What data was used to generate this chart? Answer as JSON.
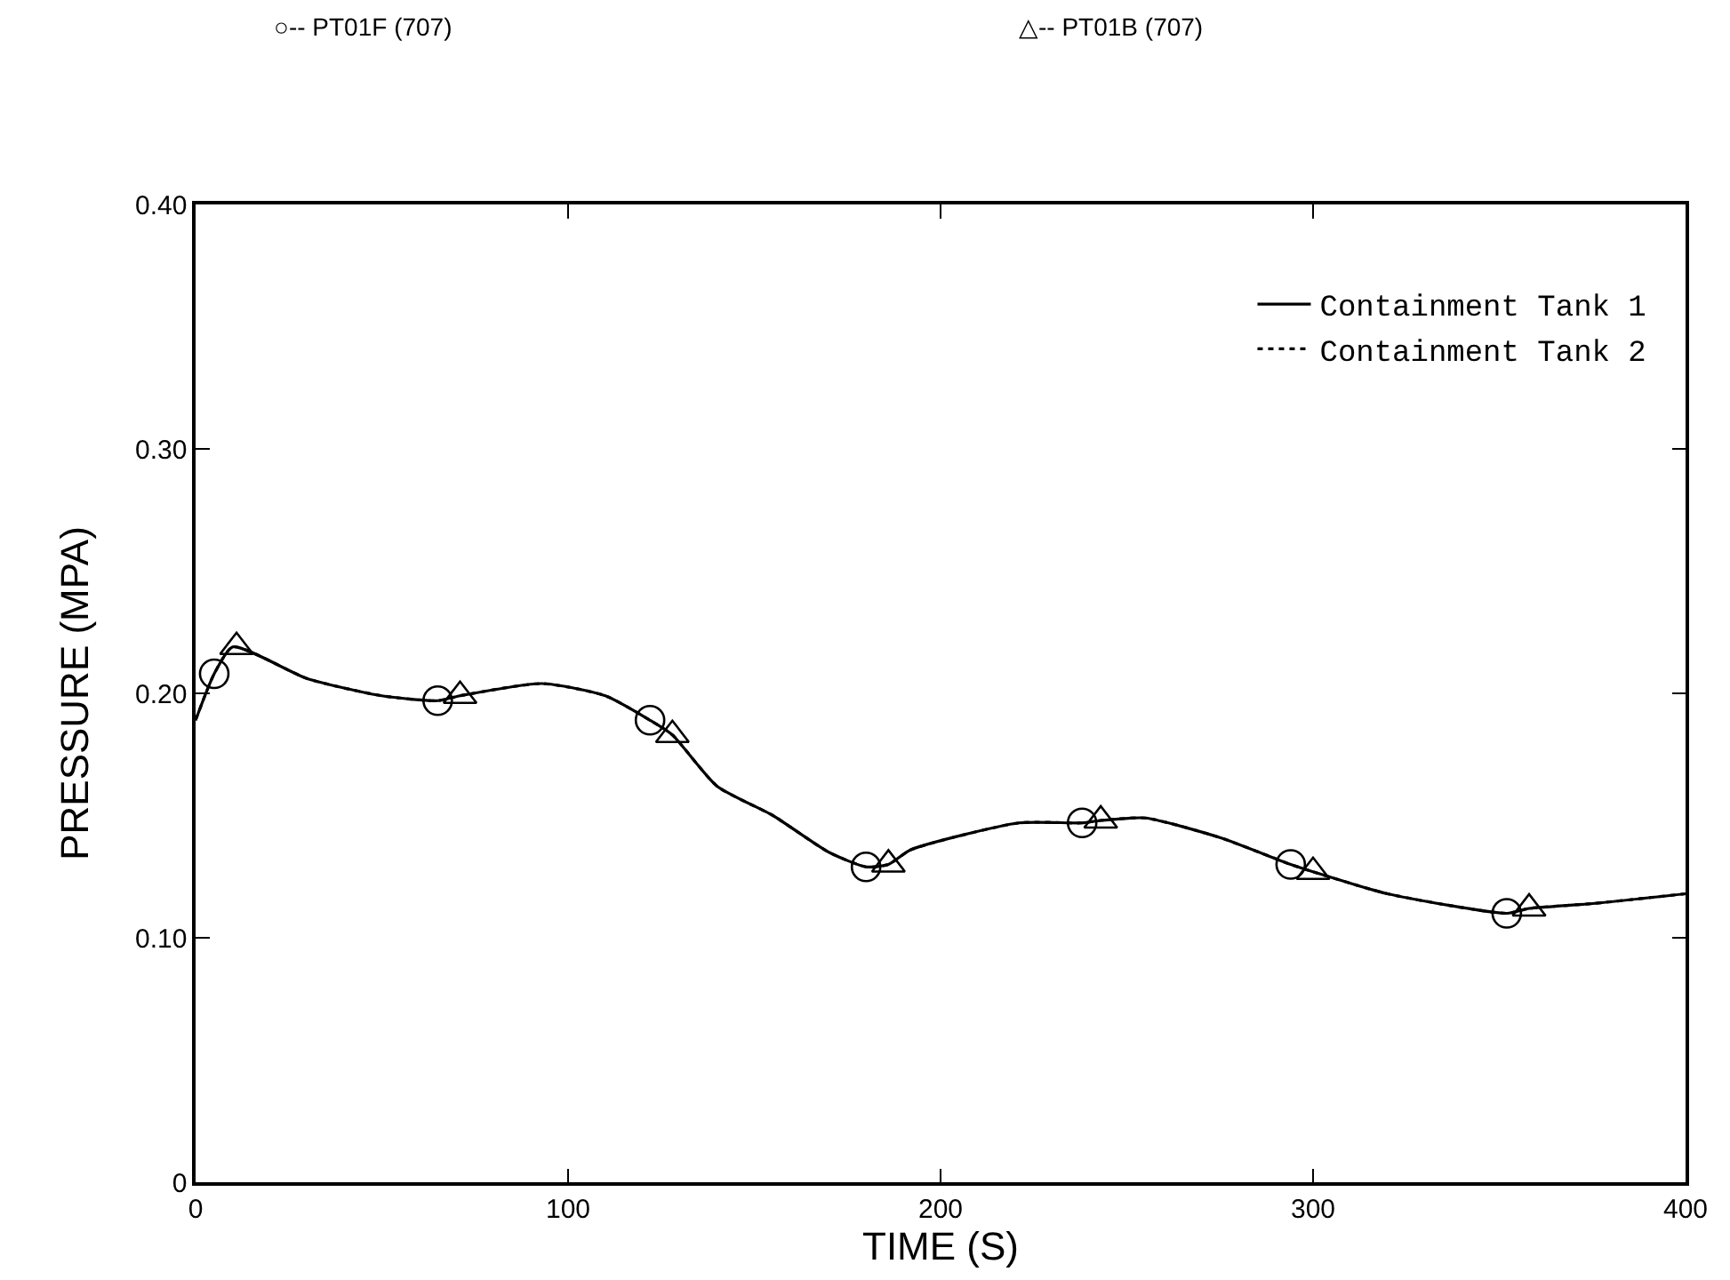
{
  "chart_data": {
    "type": "line",
    "xlabel": "TIME (S)",
    "ylabel": "PRESSURE (MPA)",
    "annotations": [
      "○-- PT01F (707)",
      "△-- PT01B (707)"
    ],
    "xlim": [
      0,
      400
    ],
    "xticks": [
      0,
      100,
      200,
      300,
      400
    ],
    "ylim": [
      0,
      0.4
    ],
    "yticks": [
      0,
      {
        "value": 0.1,
        "label": "0.10"
      },
      {
        "value": 0.2,
        "label": "0.20"
      },
      {
        "value": 0.3,
        "label": "0.30"
      },
      {
        "value": 0.4,
        "label": "0.40"
      }
    ],
    "legend": "top right",
    "series": [
      {
        "name": "Containment Tank 1",
        "color": "#000000",
        "line_style": "solid",
        "marker": "none",
        "x": [
          0,
          5,
          10,
          30,
          50,
          65,
          71,
          93,
          110,
          122,
          128,
          140,
          155,
          170,
          180,
          186,
          192,
          221,
          238,
          243,
          255,
          275,
          294,
          300,
          320,
          352,
          358,
          375,
          400
        ],
        "values": [
          0.189,
          0.208,
          0.219,
          0.206,
          0.199,
          0.197,
          0.199,
          0.204,
          0.199,
          0.189,
          0.183,
          0.162,
          0.15,
          0.135,
          0.129,
          0.13,
          0.136,
          0.147,
          0.147,
          0.148,
          0.149,
          0.141,
          0.13,
          0.127,
          0.118,
          0.11,
          0.112,
          0.114,
          0.118
        ]
      },
      {
        "name": "Containment Tank 2",
        "color": "#000000",
        "line_style": "dotted",
        "marker": "none",
        "x": [
          0,
          5,
          10,
          30,
          50,
          65,
          71,
          93,
          110,
          122,
          128,
          140,
          155,
          170,
          180,
          186,
          192,
          221,
          238,
          243,
          255,
          275,
          294,
          300,
          320,
          352,
          358,
          375,
          400
        ],
        "values": [
          0.189,
          0.208,
          0.219,
          0.206,
          0.199,
          0.197,
          0.199,
          0.204,
          0.199,
          0.189,
          0.183,
          0.162,
          0.15,
          0.135,
          0.129,
          0.13,
          0.136,
          0.147,
          0.147,
          0.148,
          0.149,
          0.141,
          0.13,
          0.127,
          0.118,
          0.11,
          0.112,
          0.114,
          0.118
        ]
      },
      {
        "type": "scatter",
        "color": "#000000",
        "marker": "circle",
        "x": [
          5,
          65,
          122,
          180,
          238,
          294,
          352
        ],
        "values": [
          0.208,
          0.197,
          0.189,
          0.129,
          0.147,
          0.13,
          0.11
        ]
      },
      {
        "type": "scatter",
        "color": "#000000",
        "marker": "triangle",
        "x": [
          11,
          71,
          128,
          186,
          243,
          300,
          358
        ],
        "values": [
          0.219,
          0.199,
          0.183,
          0.13,
          0.148,
          0.127,
          0.112
        ]
      }
    ]
  }
}
